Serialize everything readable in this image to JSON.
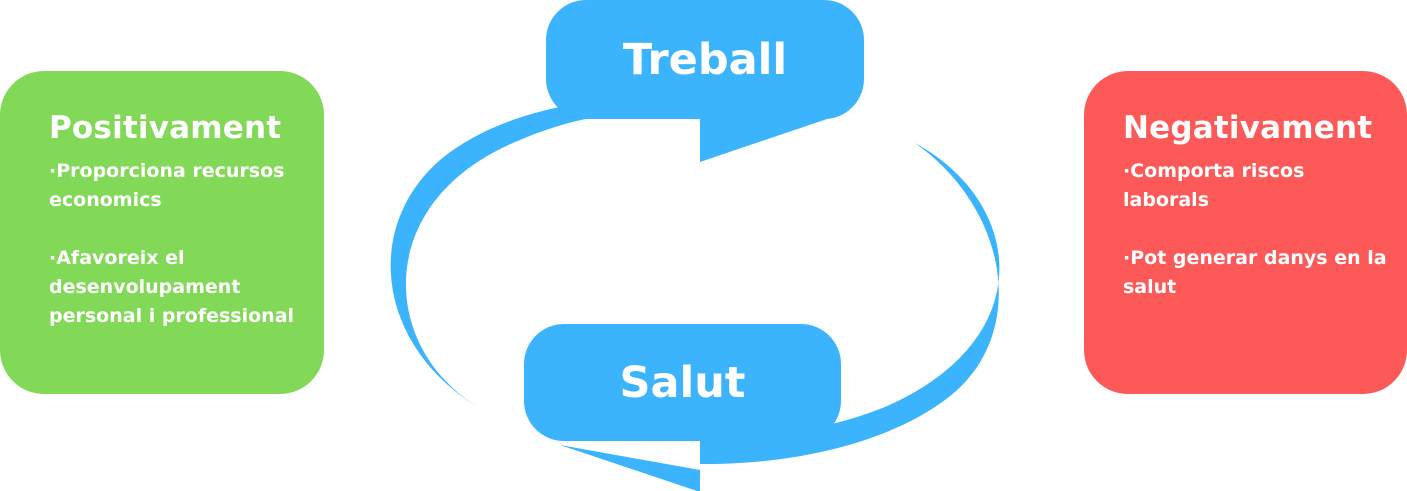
{
  "colors": {
    "cycle_blue": "#3bb4fd",
    "positive_green": "#82d957",
    "negative_red": "#fd5959"
  },
  "cycle": {
    "top_label": "Treball",
    "bottom_label": "Salut"
  },
  "positive": {
    "title": "Positivament",
    "items": [
      "·Proporciona recursos economics",
      "·Afavoreix el desenvolupament personal i professional"
    ]
  },
  "negative": {
    "title": "Negativament",
    "items": [
      "·Comporta riscos laborals",
      "·Pot generar danys en la salut"
    ]
  }
}
